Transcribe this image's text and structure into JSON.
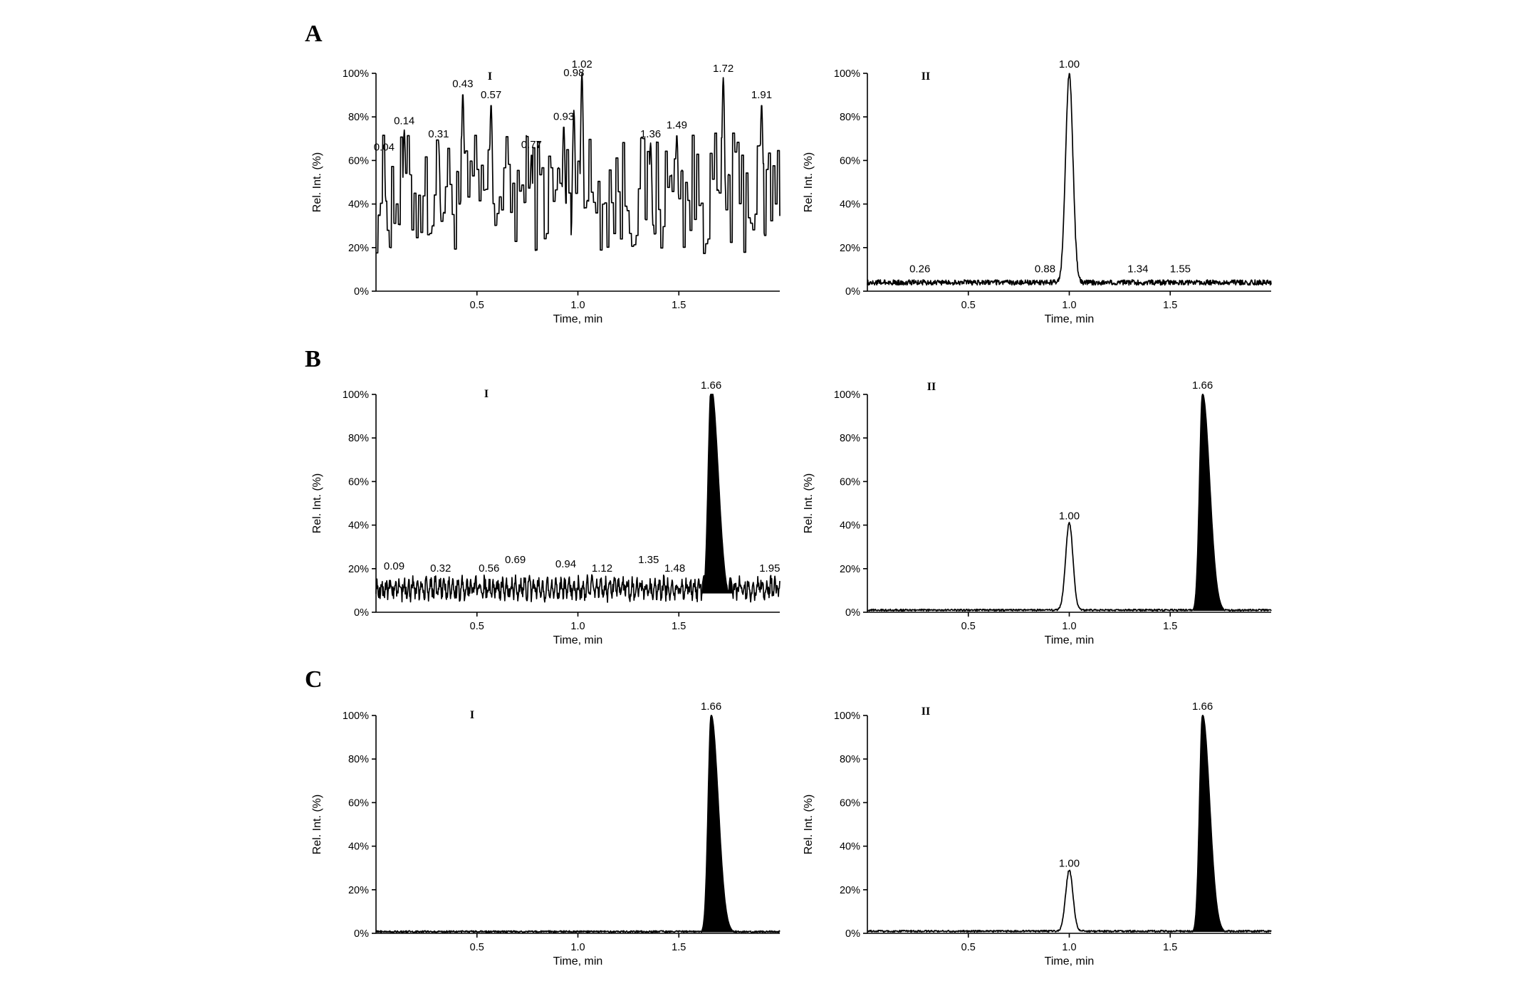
{
  "panel_letters": [
    "A",
    "B",
    "C"
  ],
  "chart_data": [
    {
      "id": "A-I",
      "panel": "A",
      "sub_label": "I",
      "type": "line",
      "xlabel": "Time, min",
      "ylabel": "Rel. Int. (%)",
      "xlim": [
        0,
        2.0
      ],
      "ylim": [
        0,
        100
      ],
      "xticks": [
        0.5,
        1.0,
        1.5
      ],
      "xtick_labels": [
        "0.5",
        "1.0",
        "1.5"
      ],
      "yticks": [
        0,
        20,
        40,
        60,
        80,
        100
      ],
      "ytick_labels": [
        "0%",
        "20%",
        "40%",
        "60%",
        "80%",
        "100%"
      ],
      "noise": "high",
      "baseline": 45,
      "noise_amplitude": 28,
      "peaks": [
        {
          "t": 0.04,
          "h": 62,
          "w": 0.008
        },
        {
          "t": 0.14,
          "h": 74,
          "w": 0.008
        },
        {
          "t": 0.31,
          "h": 68,
          "w": 0.008
        },
        {
          "t": 0.43,
          "h": 91,
          "w": 0.008
        },
        {
          "t": 0.57,
          "h": 86,
          "w": 0.008
        },
        {
          "t": 0.77,
          "h": 63,
          "w": 0.008
        },
        {
          "t": 0.93,
          "h": 76,
          "w": 0.008
        },
        {
          "t": 0.98,
          "h": 83,
          "w": 0.008
        },
        {
          "t": 1.02,
          "h": 100,
          "w": 0.008
        },
        {
          "t": 1.36,
          "h": 68,
          "w": 0.008
        },
        {
          "t": 1.49,
          "h": 72,
          "w": 0.008
        },
        {
          "t": 1.72,
          "h": 98,
          "w": 0.008
        },
        {
          "t": 1.91,
          "h": 86,
          "w": 0.008
        }
      ],
      "peak_labels": [
        {
          "text": "0.04",
          "t": 0.04,
          "h": 62
        },
        {
          "text": "0.14",
          "t": 0.14,
          "h": 74
        },
        {
          "text": "0.31",
          "t": 0.31,
          "h": 68
        },
        {
          "text": "0.43",
          "t": 0.43,
          "h": 91
        },
        {
          "text": "0.57",
          "t": 0.57,
          "h": 86
        },
        {
          "text": "0.77",
          "t": 0.77,
          "h": 63
        },
        {
          "text": "0.93",
          "t": 0.93,
          "h": 76
        },
        {
          "text": "0.98",
          "t": 0.98,
          "h": 96
        },
        {
          "text": "1.02",
          "t": 1.02,
          "h": 100
        },
        {
          "text": "1.36",
          "t": 1.36,
          "h": 68
        },
        {
          "text": "1.49",
          "t": 1.49,
          "h": 72
        },
        {
          "text": "1.72",
          "t": 1.72,
          "h": 98
        },
        {
          "text": "1.91",
          "t": 1.91,
          "h": 86
        }
      ],
      "filled_peak": null
    },
    {
      "id": "A-II",
      "panel": "A",
      "sub_label": "II",
      "type": "line",
      "xlabel": "Time, min",
      "ylabel": "Rel. Int. (%)",
      "xlim": [
        0,
        2.0
      ],
      "ylim": [
        0,
        100
      ],
      "xticks": [
        0.5,
        1.0,
        1.5
      ],
      "xtick_labels": [
        "0.5",
        "1.0",
        "1.5"
      ],
      "yticks": [
        0,
        20,
        40,
        60,
        80,
        100
      ],
      "ytick_labels": [
        "0%",
        "20%",
        "40%",
        "60%",
        "80%",
        "100%"
      ],
      "noise": "low",
      "baseline": 4,
      "noise_amplitude": 1.2,
      "peaks": [
        {
          "t": 1.0,
          "h": 96,
          "w": 0.018
        }
      ],
      "peak_labels": [
        {
          "text": "0.26",
          "t": 0.26,
          "h": 6
        },
        {
          "text": "0.88",
          "t": 0.88,
          "h": 6
        },
        {
          "text": "1.00",
          "t": 1.0,
          "h": 100
        },
        {
          "text": "1.34",
          "t": 1.34,
          "h": 6
        },
        {
          "text": "1.55",
          "t": 1.55,
          "h": 6
        }
      ],
      "filled_peak": null
    },
    {
      "id": "B-I",
      "panel": "B",
      "sub_label": "I",
      "type": "line",
      "xlabel": "Time, min",
      "ylabel": "Rel. Int. (%)",
      "xlim": [
        0,
        2.0
      ],
      "ylim": [
        0,
        100
      ],
      "xticks": [
        0.5,
        1.0,
        1.5
      ],
      "xtick_labels": [
        "0.5",
        "1.0",
        "1.5"
      ],
      "yticks": [
        0,
        20,
        40,
        60,
        80,
        100
      ],
      "ytick_labels": [
        "0%",
        "20%",
        "40%",
        "60%",
        "80%",
        "100%"
      ],
      "noise": "medium",
      "baseline": 11,
      "noise_amplitude": 5,
      "peaks": [],
      "peak_labels": [
        {
          "text": "0.09",
          "t": 0.09,
          "h": 17
        },
        {
          "text": "0.32",
          "t": 0.32,
          "h": 16
        },
        {
          "text": "0.56",
          "t": 0.56,
          "h": 16
        },
        {
          "text": "0.69",
          "t": 0.69,
          "h": 20
        },
        {
          "text": "0.94",
          "t": 0.94,
          "h": 18
        },
        {
          "text": "1.12",
          "t": 1.12,
          "h": 16
        },
        {
          "text": "1.35",
          "t": 1.35,
          "h": 20
        },
        {
          "text": "1.48",
          "t": 1.48,
          "h": 16
        },
        {
          "text": "1.66",
          "t": 1.66,
          "h": 100
        },
        {
          "text": "1.95",
          "t": 1.95,
          "h": 16
        }
      ],
      "filled_peak": {
        "t": 1.66,
        "h": 100,
        "w_left": 0.015,
        "w_right": 0.035
      }
    },
    {
      "id": "B-II",
      "panel": "B",
      "sub_label": "II",
      "type": "line",
      "xlabel": "Time, min",
      "ylabel": "Rel. Int. (%)",
      "xlim": [
        0,
        2.0
      ],
      "ylim": [
        0,
        100
      ],
      "xticks": [
        0.5,
        1.0,
        1.5
      ],
      "xtick_labels": [
        "0.5",
        "1.0",
        "1.5"
      ],
      "yticks": [
        0,
        20,
        40,
        60,
        80,
        100
      ],
      "ytick_labels": [
        "0%",
        "20%",
        "40%",
        "60%",
        "80%",
        "100%"
      ],
      "noise": "low",
      "baseline": 1,
      "noise_amplitude": 0.4,
      "peaks": [
        {
          "t": 1.0,
          "h": 40,
          "w": 0.018
        }
      ],
      "peak_labels": [
        {
          "text": "1.00",
          "t": 1.0,
          "h": 40
        },
        {
          "text": "1.66",
          "t": 1.66,
          "h": 100
        }
      ],
      "filled_peak": {
        "t": 1.66,
        "h": 100,
        "w_left": 0.015,
        "w_right": 0.035
      }
    },
    {
      "id": "C-I",
      "panel": "C",
      "sub_label": "I",
      "type": "line",
      "xlabel": "Time, min",
      "ylabel": "Rel. Int. (%)",
      "xlim": [
        0,
        2.0
      ],
      "ylim": [
        0,
        100
      ],
      "xticks": [
        0.5,
        1.0,
        1.5
      ],
      "xtick_labels": [
        "0.5",
        "1.0",
        "1.5"
      ],
      "yticks": [
        0,
        20,
        40,
        60,
        80,
        100
      ],
      "ytick_labels": [
        "0%",
        "20%",
        "40%",
        "60%",
        "80%",
        "100%"
      ],
      "noise": "low",
      "baseline": 0.8,
      "noise_amplitude": 0.4,
      "peaks": [],
      "peak_labels": [
        {
          "text": "1.66",
          "t": 1.66,
          "h": 100
        }
      ],
      "filled_peak": {
        "t": 1.66,
        "h": 100,
        "w_left": 0.015,
        "w_right": 0.035
      }
    },
    {
      "id": "C-II",
      "panel": "C",
      "sub_label": "II",
      "type": "line",
      "xlabel": "Time, min",
      "ylabel": "Rel. Int. (%)",
      "xlim": [
        0,
        2.0
      ],
      "ylim": [
        0,
        100
      ],
      "xticks": [
        0.5,
        1.0,
        1.5
      ],
      "xtick_labels": [
        "0.5",
        "1.0",
        "1.5"
      ],
      "yticks": [
        0,
        20,
        40,
        60,
        80,
        100
      ],
      "ytick_labels": [
        "0%",
        "20%",
        "40%",
        "60%",
        "80%",
        "100%"
      ],
      "noise": "low",
      "baseline": 1,
      "noise_amplitude": 0.4,
      "peaks": [
        {
          "t": 1.0,
          "h": 28,
          "w": 0.018
        }
      ],
      "peak_labels": [
        {
          "text": "1.00",
          "t": 1.0,
          "h": 28
        },
        {
          "text": "1.66",
          "t": 1.66,
          "h": 100
        }
      ],
      "filled_peak": {
        "t": 1.66,
        "h": 100,
        "w_left": 0.015,
        "w_right": 0.035
      }
    }
  ]
}
